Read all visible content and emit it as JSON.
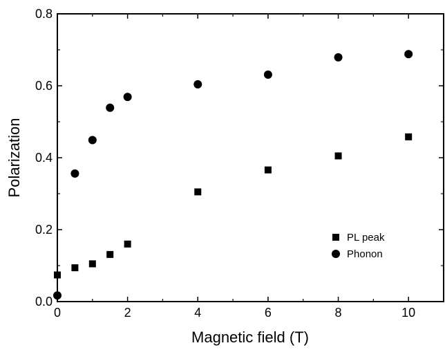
{
  "chart_data": {
    "type": "scatter",
    "xlabel": "Magnetic field (T)",
    "ylabel": "Polarization",
    "xlim": [
      0,
      11
    ],
    "ylim": [
      0,
      0.8
    ],
    "x_ticks": [
      0,
      2,
      4,
      6,
      8,
      10
    ],
    "x_tick_labels": [
      "0",
      "2",
      "4",
      "6",
      "8",
      "10"
    ],
    "y_ticks": [
      0,
      0.2,
      0.4,
      0.6,
      0.8
    ],
    "y_tick_labels": [
      "0.0",
      "0.2",
      "0.4",
      "0.6",
      "0.8"
    ],
    "grid": false,
    "legend_position": "lower-right",
    "series": [
      {
        "name": "PL peak",
        "marker": "square",
        "color": "#000000",
        "x": [
          0,
          0.5,
          1,
          1.5,
          2,
          4,
          6,
          8,
          10
        ],
        "y": [
          0.074,
          0.094,
          0.105,
          0.131,
          0.16,
          0.305,
          0.366,
          0.405,
          0.458
        ]
      },
      {
        "name": "Phonon",
        "marker": "circle",
        "color": "#000000",
        "x": [
          0,
          0.5,
          1,
          1.5,
          2,
          4,
          6,
          8,
          10
        ],
        "y": [
          0.017,
          0.356,
          0.449,
          0.539,
          0.569,
          0.604,
          0.631,
          0.679,
          0.688
        ]
      }
    ]
  }
}
